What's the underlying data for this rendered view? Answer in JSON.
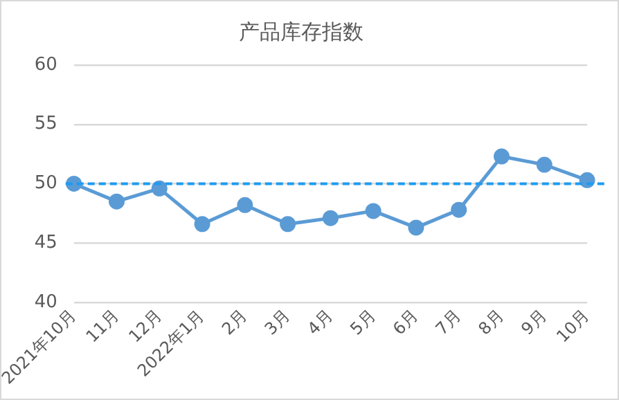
{
  "chart_data": {
    "type": "line",
    "title": "产品库存指数",
    "categories": [
      "2021年10月",
      "11月",
      "12月",
      "2022年1月",
      "2月",
      "3月",
      "4月",
      "5月",
      "6月",
      "7月",
      "8月",
      "9月",
      "10月"
    ],
    "series": [
      {
        "color": "#5b9bd5",
        "values": [
          50.0,
          48.5,
          49.6,
          46.6,
          48.2,
          46.6,
          47.1,
          47.7,
          46.3,
          47.8,
          52.3,
          51.6,
          50.3
        ]
      }
    ],
    "ylim": [
      40,
      60
    ],
    "yticks": [
      40,
      45,
      50,
      55,
      60
    ],
    "grid": "y",
    "legend": false,
    "marker": "circle",
    "line_style": "solid",
    "ref_lines": [
      {
        "axis": "y",
        "value": 50,
        "color": "#1e9bf0",
        "line_style": "dashed"
      }
    ]
  }
}
